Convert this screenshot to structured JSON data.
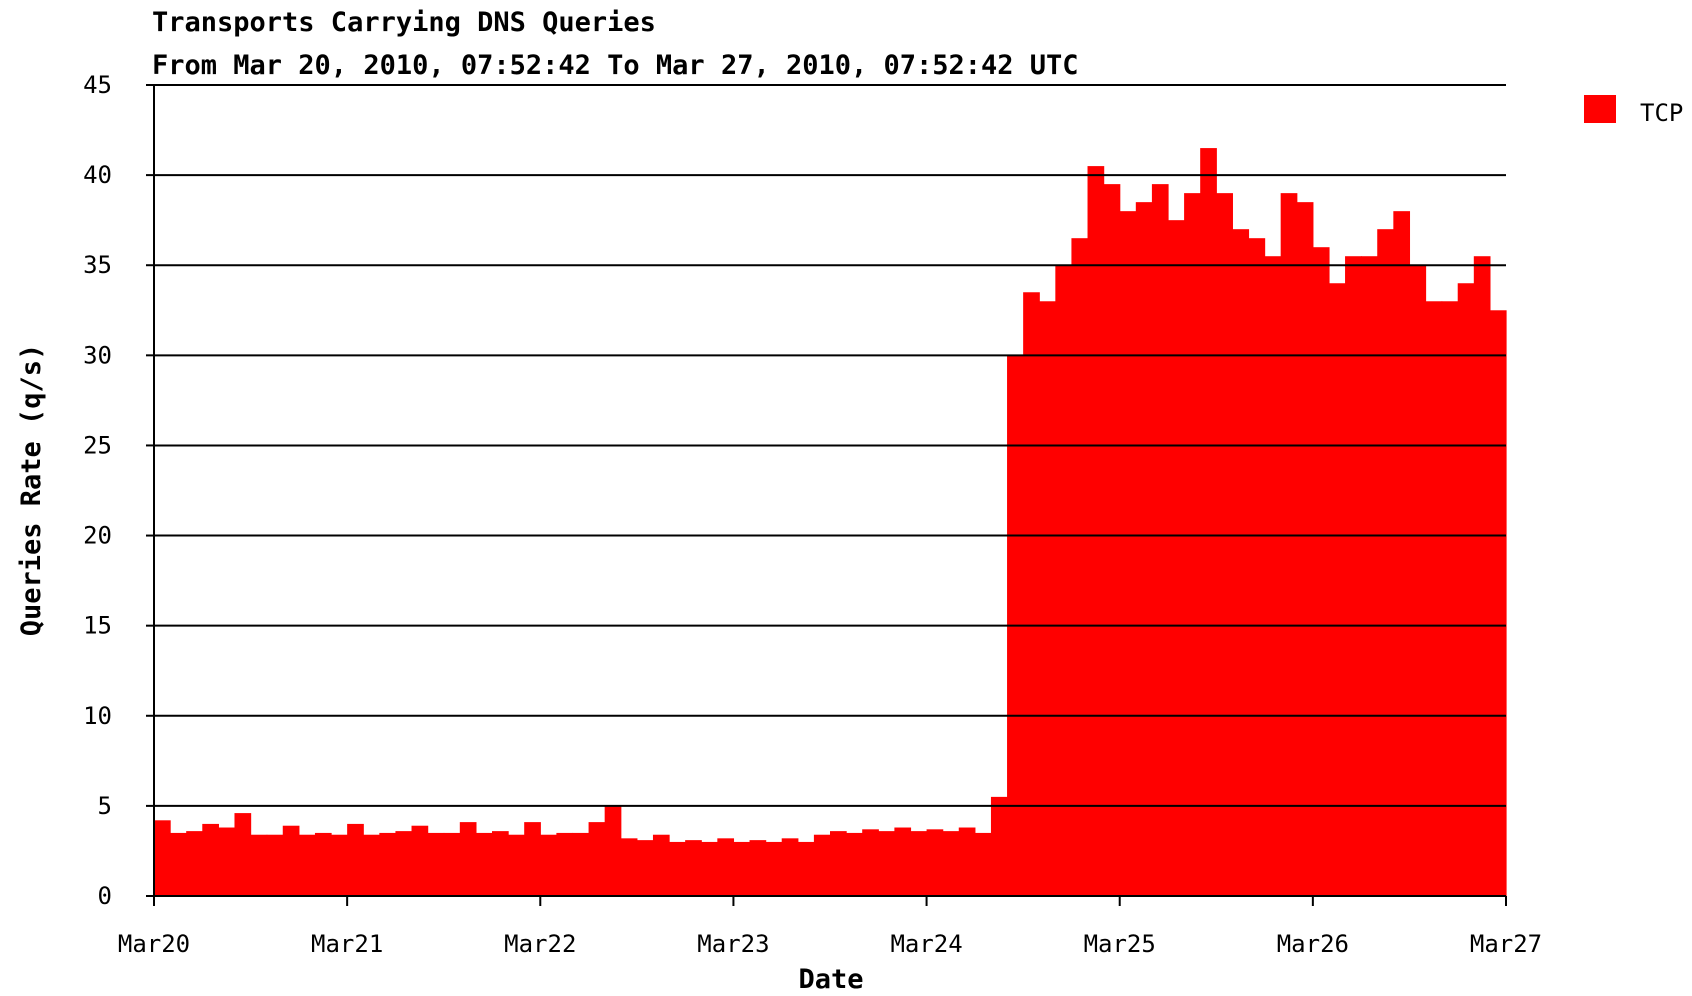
{
  "chart_data": {
    "type": "area",
    "title": "Transports Carrying DNS Queries",
    "subtitle": "From Mar 20, 2010, 07:52:42 To Mar 27, 2010, 07:52:42 UTC",
    "x_label": "Date",
    "y_label": "Queries Rate (q/s)",
    "x": [
      0,
      2,
      4,
      6,
      8,
      10,
      12,
      14,
      16,
      18,
      20,
      22,
      24,
      26,
      28,
      30,
      32,
      34,
      36,
      38,
      40,
      42,
      44,
      46,
      48,
      50,
      52,
      54,
      56,
      58,
      60,
      62,
      64,
      66,
      68,
      70,
      72,
      74,
      76,
      78,
      80,
      82,
      84,
      86,
      88,
      90,
      92,
      94,
      96,
      98,
      100,
      102,
      104,
      106,
      108,
      110,
      112,
      114,
      116,
      118,
      120,
      122,
      124,
      126,
      128,
      130,
      132,
      134,
      136,
      138,
      140,
      142,
      144,
      146,
      148,
      150,
      152,
      154,
      156,
      158,
      160,
      162,
      164,
      166
    ],
    "series": [
      {
        "name": "TCP",
        "color": "#ff0000",
        "values": [
          4.2,
          3.5,
          3.6,
          4.0,
          3.8,
          4.6,
          3.4,
          3.4,
          3.9,
          3.4,
          3.5,
          3.4,
          4.0,
          3.4,
          3.5,
          3.6,
          3.9,
          3.5,
          3.5,
          4.1,
          3.5,
          3.6,
          3.4,
          4.1,
          3.4,
          3.5,
          3.5,
          4.1,
          5.0,
          3.2,
          3.1,
          3.4,
          3.0,
          3.1,
          3.0,
          3.2,
          3.0,
          3.1,
          3.0,
          3.2,
          3.0,
          3.4,
          3.6,
          3.5,
          3.7,
          3.6,
          3.8,
          3.6,
          3.7,
          3.6,
          3.8,
          3.5,
          5.5,
          30,
          33.5,
          33,
          35,
          36.5,
          40.5,
          39.5,
          38,
          38.5,
          39.5,
          37.5,
          39,
          41.5,
          39,
          37,
          36.5,
          35.5,
          39,
          38.5,
          36,
          34,
          35.5,
          35.5,
          37,
          38,
          35,
          33,
          33,
          34,
          35.5,
          32.5
        ]
      }
    ],
    "xlim": [
      0,
      168
    ],
    "xticks": [
      {
        "value": 0,
        "label": "Mar20"
      },
      {
        "value": 24,
        "label": "Mar21"
      },
      {
        "value": 48,
        "label": "Mar22"
      },
      {
        "value": 72,
        "label": "Mar23"
      },
      {
        "value": 96,
        "label": "Mar24"
      },
      {
        "value": 120,
        "label": "Mar25"
      },
      {
        "value": 144,
        "label": "Mar26"
      },
      {
        "value": 168,
        "label": "Mar27"
      }
    ],
    "ylim": [
      0,
      45
    ],
    "yticks": [
      0,
      5,
      10,
      15,
      20,
      25,
      30,
      35,
      40,
      45
    ],
    "grid": true,
    "legend": "right"
  }
}
